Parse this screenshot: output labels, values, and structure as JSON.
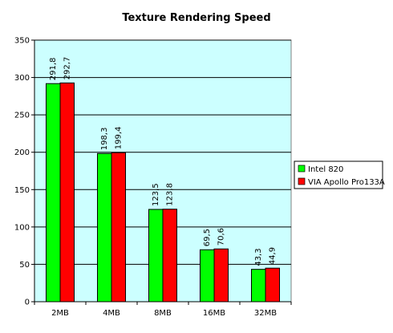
{
  "chart_data": {
    "type": "bar",
    "title": "Texture Rendering Speed",
    "xlabel": "",
    "ylabel": "",
    "categories": [
      "2MB",
      "4MB",
      "8MB",
      "16MB",
      "32MB"
    ],
    "ylim": [
      0,
      350
    ],
    "yticks": [
      0,
      50,
      100,
      150,
      200,
      250,
      300,
      350
    ],
    "grid": true,
    "legend_position": "right",
    "plot_background": "#ccffff",
    "series": [
      {
        "name": "Intel 820",
        "color": "#00ff00",
        "values": [
          291.8,
          198.3,
          123.5,
          69.5,
          43.3
        ],
        "labels": [
          "291,8",
          "198,3",
          "123,5",
          "69,5",
          "43,3"
        ]
      },
      {
        "name": "VIA Apollo Pro133A",
        "color": "#ff0000",
        "values": [
          292.7,
          199.4,
          123.8,
          70.6,
          44.9
        ],
        "labels": [
          "292,7",
          "199,4",
          "123,8",
          "70,6",
          "44,9"
        ]
      }
    ]
  }
}
